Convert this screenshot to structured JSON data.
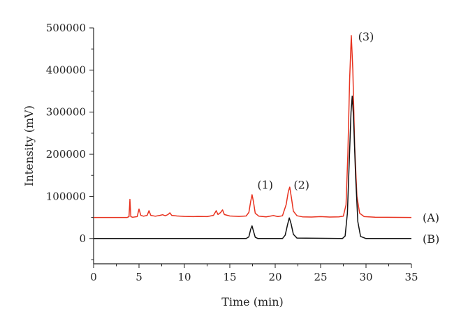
{
  "chart_data": {
    "type": "line",
    "title": "",
    "xlabel": "Time (min)",
    "ylabel": "Intensity (mV)",
    "xlim": [
      0,
      35
    ],
    "ylim": [
      -60000,
      500000
    ],
    "x_ticks": [
      0,
      5,
      10,
      15,
      20,
      25,
      30,
      35
    ],
    "x_tick_labels": [
      "0",
      "5",
      "10",
      "15",
      "20",
      "25",
      "30",
      "35"
    ],
    "y_ticks": [
      0,
      100000,
      200000,
      300000,
      400000,
      500000
    ],
    "y_tick_labels": [
      "0",
      "100000",
      "200000",
      "300000",
      "400000",
      "500000"
    ],
    "grid": false,
    "series": [
      {
        "name": "(A)",
        "color": "#e8321f",
        "baseline": 50000,
        "points": [
          [
            0,
            50000
          ],
          [
            3.7,
            50000
          ],
          [
            3.9,
            52000
          ],
          [
            4.0,
            93000
          ],
          [
            4.1,
            52000
          ],
          [
            4.3,
            50500
          ],
          [
            4.8,
            52000
          ],
          [
            5.0,
            70000
          ],
          [
            5.2,
            55000
          ],
          [
            5.5,
            53000
          ],
          [
            5.9,
            55000
          ],
          [
            6.1,
            66000
          ],
          [
            6.3,
            55000
          ],
          [
            6.8,
            53000
          ],
          [
            7.3,
            55000
          ],
          [
            7.6,
            56500
          ],
          [
            7.9,
            54000
          ],
          [
            8.2,
            57000
          ],
          [
            8.4,
            61000
          ],
          [
            8.6,
            55000
          ],
          [
            9.2,
            53500
          ],
          [
            10.0,
            52500
          ],
          [
            11.0,
            52000
          ],
          [
            11.5,
            52500
          ],
          [
            12.5,
            52000
          ],
          [
            13.2,
            55000
          ],
          [
            13.5,
            66000
          ],
          [
            13.7,
            57000
          ],
          [
            14.0,
            62000
          ],
          [
            14.2,
            68000
          ],
          [
            14.4,
            57000
          ],
          [
            15.0,
            53500
          ],
          [
            16.0,
            52500
          ],
          [
            16.8,
            53500
          ],
          [
            17.1,
            62000
          ],
          [
            17.3,
            88000
          ],
          [
            17.45,
            104000
          ],
          [
            17.6,
            88000
          ],
          [
            17.8,
            60000
          ],
          [
            18.2,
            53000
          ],
          [
            19.0,
            51500
          ],
          [
            19.8,
            54500
          ],
          [
            20.3,
            52000
          ],
          [
            20.8,
            54000
          ],
          [
            21.2,
            80000
          ],
          [
            21.45,
            112000
          ],
          [
            21.6,
            122000
          ],
          [
            21.8,
            95000
          ],
          [
            22.0,
            65000
          ],
          [
            22.4,
            54000
          ],
          [
            23.0,
            51500
          ],
          [
            24.0,
            51000
          ],
          [
            25.0,
            52000
          ],
          [
            26.0,
            51000
          ],
          [
            27.0,
            51500
          ],
          [
            27.5,
            53000
          ],
          [
            27.8,
            80000
          ],
          [
            28.0,
            200000
          ],
          [
            28.2,
            380000
          ],
          [
            28.38,
            482000
          ],
          [
            28.55,
            400000
          ],
          [
            28.75,
            220000
          ],
          [
            29.0,
            100000
          ],
          [
            29.3,
            60000
          ],
          [
            29.8,
            52000
          ],
          [
            31.0,
            50500
          ],
          [
            35,
            50000
          ]
        ]
      },
      {
        "name": "(B)",
        "color": "#111111",
        "baseline": 0,
        "points": [
          [
            0,
            0
          ],
          [
            16.8,
            0
          ],
          [
            17.1,
            4000
          ],
          [
            17.3,
            22000
          ],
          [
            17.45,
            30000
          ],
          [
            17.6,
            18000
          ],
          [
            17.8,
            3000
          ],
          [
            18.1,
            0
          ],
          [
            20.8,
            0
          ],
          [
            21.1,
            8000
          ],
          [
            21.35,
            32000
          ],
          [
            21.55,
            49000
          ],
          [
            21.75,
            35000
          ],
          [
            22.0,
            10000
          ],
          [
            22.4,
            1000
          ],
          [
            27.4,
            0
          ],
          [
            27.7,
            6000
          ],
          [
            27.95,
            60000
          ],
          [
            28.15,
            180000
          ],
          [
            28.35,
            300000
          ],
          [
            28.48,
            338000
          ],
          [
            28.62,
            290000
          ],
          [
            28.85,
            150000
          ],
          [
            29.1,
            40000
          ],
          [
            29.4,
            5000
          ],
          [
            30.0,
            0
          ],
          [
            35,
            0
          ]
        ]
      }
    ],
    "annotations": [
      {
        "text": "(1)",
        "x": 18.9,
        "y": 118000
      },
      {
        "text": "(2)",
        "x": 22.9,
        "y": 118000
      },
      {
        "text": "(3)",
        "x": 30.0,
        "y": 470000
      }
    ]
  }
}
